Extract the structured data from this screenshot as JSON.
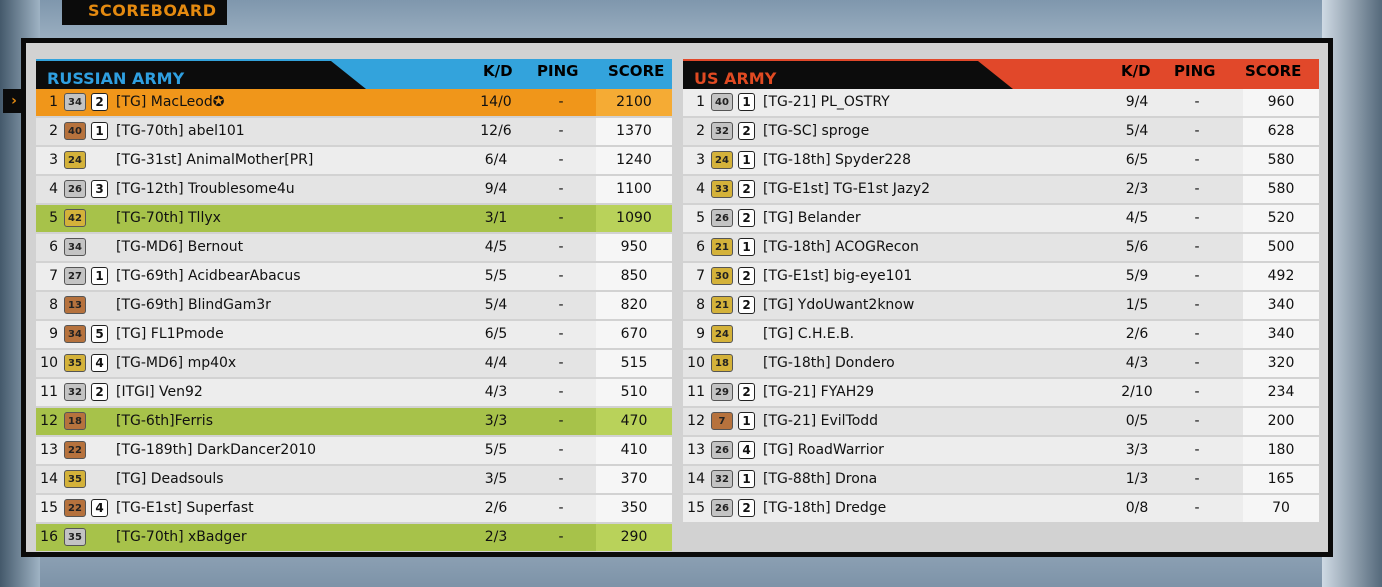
{
  "header": {
    "tab_label": "SCOREBOARD",
    "selected_marker": "›"
  },
  "teams": [
    {
      "name": "RUSSIAN ARMY",
      "color": "#33a3dc",
      "columns": {
        "kd": "K/D",
        "ping": "PING",
        "score": "SCORE"
      },
      "players": [
        {
          "pos": "1",
          "rank": "34",
          "rank_style": "silver",
          "squad": "2",
          "name": "[TG] MacLeod✪",
          "kd": "14/0",
          "ping": "-",
          "score": "2100",
          "highlight": "mine"
        },
        {
          "pos": "2",
          "rank": "40",
          "rank_style": "bronze",
          "squad": "1",
          "name": "[TG-70th] abel101",
          "kd": "12/6",
          "ping": "-",
          "score": "1370",
          "highlight": ""
        },
        {
          "pos": "3",
          "rank": "24",
          "rank_style": "gold",
          "squad": "",
          "name": "[TG-31st] AnimalMother[PR]",
          "kd": "6/4",
          "ping": "-",
          "score": "1240",
          "highlight": ""
        },
        {
          "pos": "4",
          "rank": "26",
          "rank_style": "silver",
          "squad": "3",
          "name": "[TG-12th] Troublesome4u",
          "kd": "9/4",
          "ping": "-",
          "score": "1100",
          "highlight": ""
        },
        {
          "pos": "5",
          "rank": "42",
          "rank_style": "gold",
          "squad": "",
          "name": "[TG-70th] Tllyx",
          "kd": "3/1",
          "ping": "-",
          "score": "1090",
          "highlight": "squad"
        },
        {
          "pos": "6",
          "rank": "34",
          "rank_style": "silver",
          "squad": "",
          "name": "[TG-MD6] Bernout",
          "kd": "4/5",
          "ping": "-",
          "score": "950",
          "highlight": ""
        },
        {
          "pos": "7",
          "rank": "27",
          "rank_style": "silver",
          "squad": "1",
          "name": "[TG-69th] AcidbearAbacus",
          "kd": "5/5",
          "ping": "-",
          "score": "850",
          "highlight": ""
        },
        {
          "pos": "8",
          "rank": "13",
          "rank_style": "bronze",
          "squad": "",
          "name": "[TG-69th] BlindGam3r",
          "kd": "5/4",
          "ping": "-",
          "score": "820",
          "highlight": ""
        },
        {
          "pos": "9",
          "rank": "34",
          "rank_style": "bronze",
          "squad": "5",
          "name": "[TG] FL1Pmode",
          "kd": "6/5",
          "ping": "-",
          "score": "670",
          "highlight": ""
        },
        {
          "pos": "10",
          "rank": "35",
          "rank_style": "gold",
          "squad": "4",
          "name": "[TG-MD6] mp40x",
          "kd": "4/4",
          "ping": "-",
          "score": "515",
          "highlight": ""
        },
        {
          "pos": "11",
          "rank": "32",
          "rank_style": "silver",
          "squad": "2",
          "name": "[ITGI] Ven92",
          "kd": "4/3",
          "ping": "-",
          "score": "510",
          "highlight": ""
        },
        {
          "pos": "12",
          "rank": "18",
          "rank_style": "bronze",
          "squad": "",
          "name": "[TG-6th]Ferris",
          "kd": "3/3",
          "ping": "-",
          "score": "470",
          "highlight": "squad"
        },
        {
          "pos": "13",
          "rank": "22",
          "rank_style": "bronze",
          "squad": "",
          "name": "[TG-189th] DarkDancer2010",
          "kd": "5/5",
          "ping": "-",
          "score": "410",
          "highlight": ""
        },
        {
          "pos": "14",
          "rank": "35",
          "rank_style": "gold",
          "squad": "",
          "name": "[TG] Deadsouls",
          "kd": "3/5",
          "ping": "-",
          "score": "370",
          "highlight": ""
        },
        {
          "pos": "15",
          "rank": "22",
          "rank_style": "bronze",
          "squad": "4",
          "name": "[TG-E1st] Superfast",
          "kd": "2/6",
          "ping": "-",
          "score": "350",
          "highlight": ""
        },
        {
          "pos": "16",
          "rank": "35",
          "rank_style": "silver",
          "squad": "",
          "name": "[TG-70th] xBadger",
          "kd": "2/3",
          "ping": "-",
          "score": "290",
          "highlight": "squad"
        }
      ]
    },
    {
      "name": "US ARMY",
      "color": "#e1482a",
      "columns": {
        "kd": "K/D",
        "ping": "PING",
        "score": "SCORE"
      },
      "players": [
        {
          "pos": "1",
          "rank": "40",
          "rank_style": "silver",
          "squad": "1",
          "name": "[TG-21] PL_OSTRY",
          "kd": "9/4",
          "ping": "-",
          "score": "960",
          "highlight": ""
        },
        {
          "pos": "2",
          "rank": "32",
          "rank_style": "silver",
          "squad": "2",
          "name": "[TG-SC] sproge",
          "kd": "5/4",
          "ping": "-",
          "score": "628",
          "highlight": ""
        },
        {
          "pos": "3",
          "rank": "24",
          "rank_style": "gold",
          "squad": "1",
          "name": "[TG-18th] Spyder228",
          "kd": "6/5",
          "ping": "-",
          "score": "580",
          "highlight": ""
        },
        {
          "pos": "4",
          "rank": "33",
          "rank_style": "gold",
          "squad": "2",
          "name": "[TG-E1st] TG-E1st Jazy2",
          "kd": "2/3",
          "ping": "-",
          "score": "580",
          "highlight": ""
        },
        {
          "pos": "5",
          "rank": "26",
          "rank_style": "silver",
          "squad": "2",
          "name": "[TG] Belander",
          "kd": "4/5",
          "ping": "-",
          "score": "520",
          "highlight": ""
        },
        {
          "pos": "6",
          "rank": "21",
          "rank_style": "gold",
          "squad": "1",
          "name": "[TG-18th] ACOGRecon",
          "kd": "5/6",
          "ping": "-",
          "score": "500",
          "highlight": ""
        },
        {
          "pos": "7",
          "rank": "30",
          "rank_style": "gold",
          "squad": "2",
          "name": "[TG-E1st] big-eye101",
          "kd": "5/9",
          "ping": "-",
          "score": "492",
          "highlight": ""
        },
        {
          "pos": "8",
          "rank": "21",
          "rank_style": "gold",
          "squad": "2",
          "name": "[TG] YdoUwant2know",
          "kd": "1/5",
          "ping": "-",
          "score": "340",
          "highlight": ""
        },
        {
          "pos": "9",
          "rank": "24",
          "rank_style": "gold",
          "squad": "",
          "name": "[TG] C.H.E.B.",
          "kd": "2/6",
          "ping": "-",
          "score": "340",
          "highlight": ""
        },
        {
          "pos": "10",
          "rank": "18",
          "rank_style": "gold",
          "squad": "",
          "name": "[TG-18th] Dondero",
          "kd": "4/3",
          "ping": "-",
          "score": "320",
          "highlight": ""
        },
        {
          "pos": "11",
          "rank": "29",
          "rank_style": "silver",
          "squad": "2",
          "name": "[TG-21] FYAH29",
          "kd": "2/10",
          "ping": "-",
          "score": "234",
          "highlight": ""
        },
        {
          "pos": "12",
          "rank": "7",
          "rank_style": "bronze",
          "squad": "1",
          "name": "[TG-21] EvilTodd",
          "kd": "0/5",
          "ping": "-",
          "score": "200",
          "highlight": ""
        },
        {
          "pos": "13",
          "rank": "26",
          "rank_style": "silver",
          "squad": "4",
          "name": "[TG] RoadWarrior",
          "kd": "3/3",
          "ping": "-",
          "score": "180",
          "highlight": ""
        },
        {
          "pos": "14",
          "rank": "32",
          "rank_style": "silver",
          "squad": "1",
          "name": "[TG-88th] Drona",
          "kd": "1/3",
          "ping": "-",
          "score": "165",
          "highlight": ""
        },
        {
          "pos": "15",
          "rank": "26",
          "rank_style": "silver",
          "squad": "2",
          "name": "[TG-18th] Dredge",
          "kd": "0/8",
          "ping": "-",
          "score": "70",
          "highlight": ""
        }
      ]
    }
  ]
}
